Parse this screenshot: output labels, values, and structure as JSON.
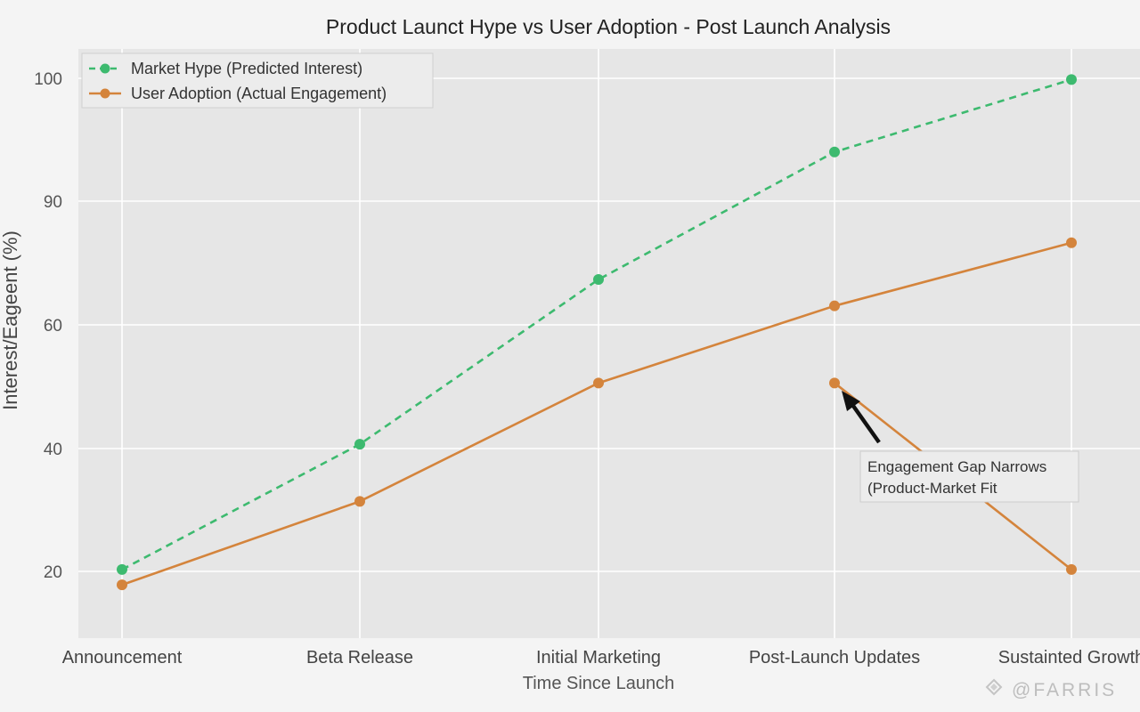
{
  "chart_data": {
    "type": "line",
    "title": "Product Launct Hype vs User Adoption - Post Launch Analysis",
    "xlabel": "Time Since Launch",
    "ylabel": "Interest/Eageent (%)",
    "categories": [
      "Announcement",
      "Beta Release",
      "Initial Marketing",
      "Post-Launch Updates",
      "Sustainted Growth"
    ],
    "yticks": [
      20,
      40,
      60,
      90,
      100
    ],
    "ylim": [
      12,
      104
    ],
    "grid": true,
    "legend_position": "top-left",
    "series": [
      {
        "name": "Market Hype (Predicted Interest)",
        "values": [
          20.3,
          40.7,
          71.0,
          94.0,
          99.9
        ],
        "color": "#3dba6f",
        "style": "dashed"
      },
      {
        "name": "User Adoption (Actual Engagement)",
        "values": [
          17.8,
          31.4,
          50.6,
          64.6,
          79.9
        ],
        "color": "#d4843c",
        "style": "solid"
      }
    ],
    "extra_segment": {
      "series": "User Adoption (Actual Engagement)",
      "points": [
        {
          "category": "Post-Launch Updates",
          "value": 50.6
        },
        {
          "category": "Sustainted Growth",
          "value": 20.3
        }
      ]
    },
    "annotations": [
      {
        "line1": "Engagement Gap Narrows",
        "line2": "(Product-Market Fit",
        "target_category": "Post-Launch Updates",
        "target_value": 50.6
      }
    ]
  },
  "watermark": "@FARRIS"
}
